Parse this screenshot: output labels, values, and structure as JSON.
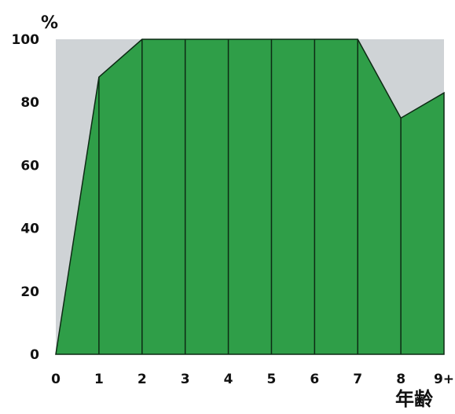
{
  "chart_data": {
    "type": "area",
    "x": [
      0,
      1,
      2,
      3,
      4,
      5,
      6,
      7,
      8,
      9
    ],
    "x_tick_labels": [
      "0",
      "1",
      "2",
      "3",
      "4",
      "5",
      "6",
      "7",
      "8",
      "9+"
    ],
    "series": [
      {
        "values": [
          0,
          88,
          100,
          100,
          100,
          100,
          100,
          100,
          75,
          83
        ]
      }
    ],
    "ylim": [
      0,
      100
    ],
    "y_ticks": [
      0,
      20,
      40,
      60,
      80,
      100
    ],
    "xlabel": "年齢",
    "ylabel": "%",
    "grid": false,
    "colors": {
      "fill": "#2f9e48",
      "stroke": "#0d2a14",
      "background": "#cfd3d6"
    }
  }
}
